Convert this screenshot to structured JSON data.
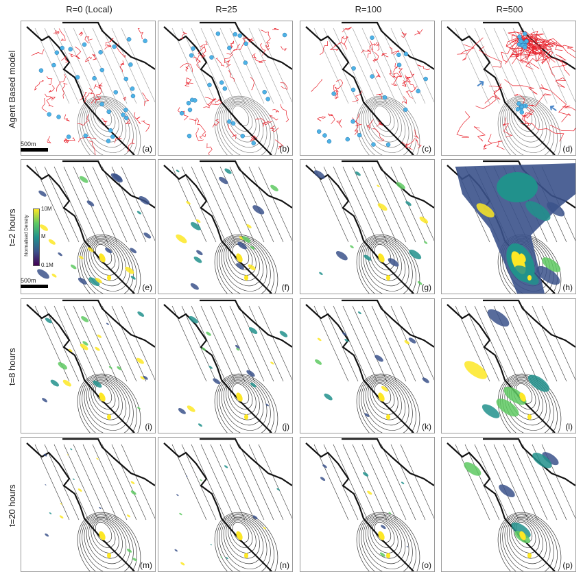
{
  "columns": [
    "R=0 (Local)",
    "R=25",
    "R=100",
    "R=500"
  ],
  "rows": [
    "Agent Based model",
    "t=2 hours",
    "t=8 hours",
    "t=20 hours"
  ],
  "panel_labels": [
    "(a)",
    "(b)",
    "(c)",
    "(d)",
    "(e)",
    "(f)",
    "(g)",
    "(h)",
    "(i)",
    "(j)",
    "(k)",
    "(l)",
    "(m)",
    "(n)",
    "(o)",
    "(p)"
  ],
  "scalebar_label": "500m",
  "colorbar": {
    "title": "Normalised Density",
    "ticks": [
      "10M",
      "M",
      "0.1M"
    ],
    "colors": [
      "#fde725",
      "#5ec962",
      "#21918c",
      "#3b528b",
      "#440154"
    ]
  },
  "colors": {
    "paths": "#e8202a",
    "agents": "#4db3e6",
    "contours": "#333333",
    "arrow": "#4a86c8"
  },
  "icons": {
    "arrow": "arrow-icon"
  }
}
